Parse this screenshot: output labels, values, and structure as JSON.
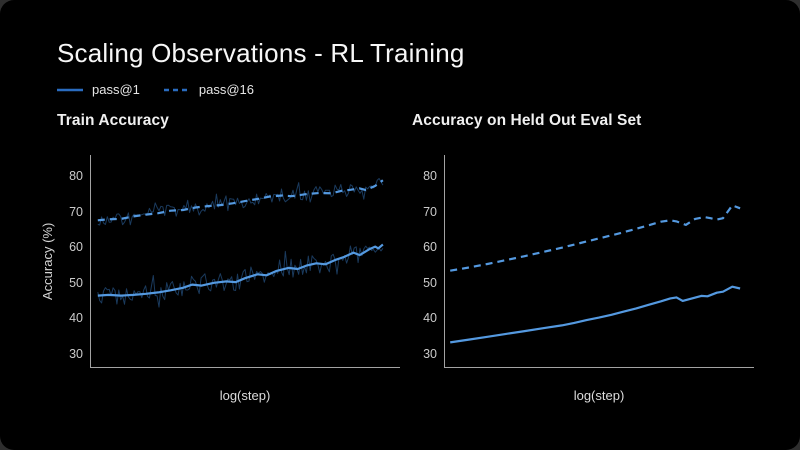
{
  "slide": {
    "title": "Scaling Observations - RL Training",
    "legend": [
      {
        "name": "pass@1",
        "style": "solid"
      },
      {
        "name": "pass@16",
        "style": "dashed"
      }
    ]
  },
  "colors": {
    "slide_background": "#000000",
    "accent_line": "#5499e0",
    "raw_line": "#1d4067",
    "legend_line": "#2a6cc0",
    "axis": "#a3a3a3",
    "tick_text": "#cbcbcb",
    "title_text": "#f7f7f7"
  },
  "chart_data": [
    {
      "type": "line",
      "title": "Train Accuracy",
      "xlabel": "log(step)",
      "ylabel": "Accuracy (%)",
      "ylim": [
        26,
        86
      ],
      "yticks": [
        80,
        70,
        60,
        50,
        40,
        30
      ],
      "legend_position": "top-left-of-slide",
      "grid": false,
      "series": [
        {
          "name": "pass@16",
          "style": "dashed",
          "points": [
            [
              0.025,
              67.6
            ],
            [
              0.06,
              67.9
            ],
            [
              0.1,
              68.0
            ],
            [
              0.14,
              68.7
            ],
            [
              0.18,
              69.2
            ],
            [
              0.22,
              69.6
            ],
            [
              0.26,
              70.3
            ],
            [
              0.3,
              70.5
            ],
            [
              0.34,
              71.2
            ],
            [
              0.38,
              71.6
            ],
            [
              0.42,
              71.9
            ],
            [
              0.46,
              72.4
            ],
            [
              0.5,
              73.0
            ],
            [
              0.54,
              73.6
            ],
            [
              0.58,
              74.3
            ],
            [
              0.62,
              74.6
            ],
            [
              0.65,
              74.4
            ],
            [
              0.7,
              75.0
            ],
            [
              0.74,
              75.3
            ],
            [
              0.78,
              75.2
            ],
            [
              0.81,
              75.9
            ],
            [
              0.84,
              76.2
            ],
            [
              0.87,
              76.6
            ],
            [
              0.89,
              76.1
            ],
            [
              0.92,
              77.3
            ],
            [
              0.945,
              78.9
            ]
          ],
          "raw_noise": {
            "amplitude": 1.9,
            "n": 150,
            "seed": 9
          }
        },
        {
          "name": "pass@1",
          "style": "solid",
          "points": [
            [
              0.025,
              46.4
            ],
            [
              0.06,
              46.6
            ],
            [
              0.1,
              46.4
            ],
            [
              0.14,
              46.6
            ],
            [
              0.18,
              46.9
            ],
            [
              0.22,
              47.3
            ],
            [
              0.26,
              47.9
            ],
            [
              0.3,
              48.6
            ],
            [
              0.33,
              49.5
            ],
            [
              0.36,
              49.2
            ],
            [
              0.4,
              50.0
            ],
            [
              0.44,
              50.4
            ],
            [
              0.47,
              50.2
            ],
            [
              0.5,
              51.3
            ],
            [
              0.54,
              52.4
            ],
            [
              0.57,
              52.1
            ],
            [
              0.6,
              53.3
            ],
            [
              0.64,
              54.2
            ],
            [
              0.67,
              53.9
            ],
            [
              0.7,
              54.9
            ],
            [
              0.73,
              55.5
            ],
            [
              0.76,
              55.2
            ],
            [
              0.79,
              56.4
            ],
            [
              0.82,
              57.3
            ],
            [
              0.85,
              58.5
            ],
            [
              0.87,
              57.8
            ],
            [
              0.9,
              59.4
            ],
            [
              0.92,
              60.2
            ],
            [
              0.93,
              59.7
            ],
            [
              0.945,
              60.8
            ]
          ],
          "raw_noise": {
            "amplitude": 2.6,
            "n": 150,
            "seed": 5
          }
        }
      ]
    },
    {
      "type": "line",
      "title": "Accuracy on Held Out Eval Set",
      "xlabel": "log(step)",
      "ylabel": "",
      "ylim": [
        26,
        86
      ],
      "yticks": [
        80,
        70,
        60,
        50,
        40,
        30
      ],
      "grid": false,
      "series": [
        {
          "name": "pass@16",
          "style": "dashed",
          "points": [
            [
              0.02,
              53.4
            ],
            [
              0.08,
              54.3
            ],
            [
              0.14,
              55.3
            ],
            [
              0.2,
              56.4
            ],
            [
              0.26,
              57.5
            ],
            [
              0.32,
              58.7
            ],
            [
              0.38,
              59.9
            ],
            [
              0.44,
              61.2
            ],
            [
              0.5,
              62.5
            ],
            [
              0.56,
              63.8
            ],
            [
              0.62,
              65.2
            ],
            [
              0.66,
              66.2
            ],
            [
              0.7,
              67.2
            ],
            [
              0.73,
              67.6
            ],
            [
              0.75,
              67.3
            ],
            [
              0.78,
              66.3
            ],
            [
              0.81,
              68.0
            ],
            [
              0.84,
              68.5
            ],
            [
              0.86,
              68.2
            ],
            [
              0.88,
              67.8
            ],
            [
              0.9,
              68.2
            ],
            [
              0.93,
              71.8
            ],
            [
              0.955,
              71.0
            ]
          ]
        },
        {
          "name": "pass@1",
          "style": "solid",
          "points": [
            [
              0.02,
              33.2
            ],
            [
              0.08,
              34.0
            ],
            [
              0.14,
              34.8
            ],
            [
              0.2,
              35.6
            ],
            [
              0.26,
              36.4
            ],
            [
              0.32,
              37.2
            ],
            [
              0.38,
              38.0
            ],
            [
              0.42,
              38.7
            ],
            [
              0.46,
              39.5
            ],
            [
              0.5,
              40.2
            ],
            [
              0.54,
              41.0
            ],
            [
              0.58,
              41.9
            ],
            [
              0.62,
              42.8
            ],
            [
              0.66,
              43.8
            ],
            [
              0.7,
              44.8
            ],
            [
              0.73,
              45.6
            ],
            [
              0.75,
              45.9
            ],
            [
              0.77,
              44.9
            ],
            [
              0.8,
              45.6
            ],
            [
              0.83,
              46.3
            ],
            [
              0.85,
              46.2
            ],
            [
              0.88,
              47.2
            ],
            [
              0.9,
              47.5
            ],
            [
              0.93,
              48.9
            ],
            [
              0.955,
              48.4
            ]
          ]
        }
      ]
    }
  ]
}
